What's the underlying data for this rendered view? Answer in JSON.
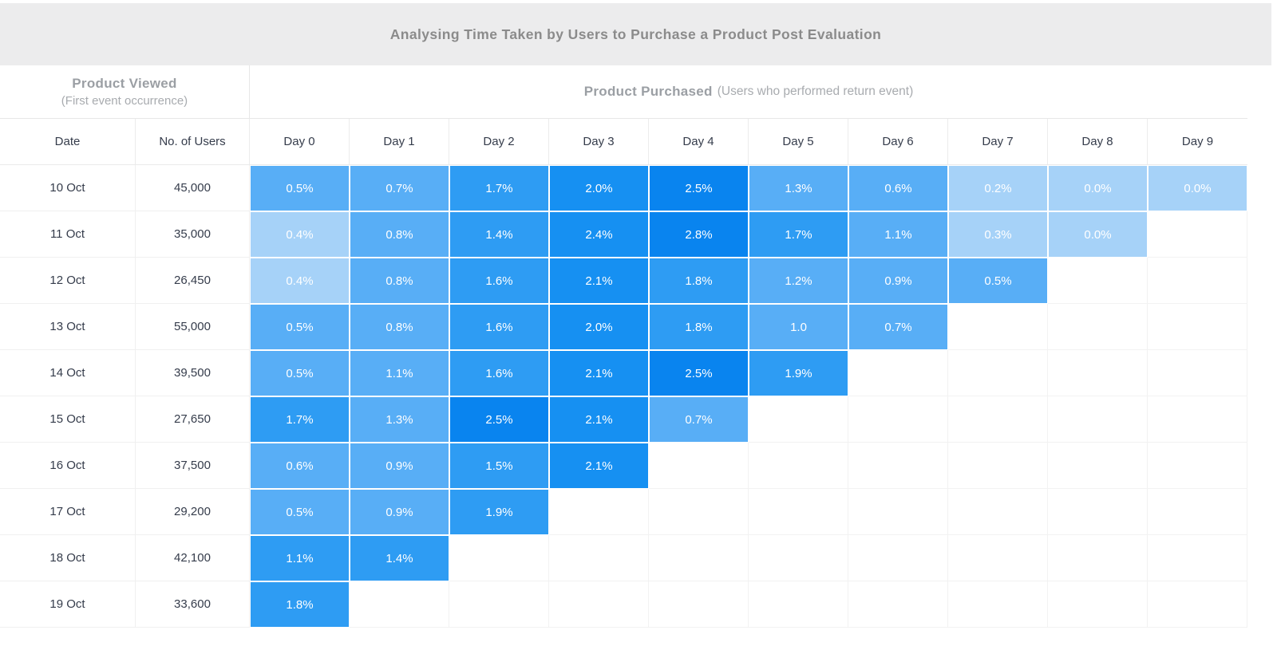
{
  "title": "Analysing Time Taken by Users to Purchase a Product Post Evaluation",
  "group_headers": {
    "left_title": "Product Viewed",
    "left_subtitle": "(First event occurrence)",
    "right_title": "Product Purchased",
    "right_subtitle": "(Users who performed return event)"
  },
  "colors": {
    "title_bar_bg": "#ECECED",
    "title_text": "#8B8B8B",
    "group_header_text": "#9B9FA4",
    "header_text": "#353C4B",
    "cell_text": "#FFFFFF",
    "grid_border": "#F0F0F0"
  },
  "chart_data": {
    "type": "heatmap",
    "title": "Analysing Time Taken by Users to Purchase a Product Post Evaluation",
    "columns": [
      "Date",
      "No. of Users",
      "Day 0",
      "Day 1",
      "Day 2",
      "Day 3",
      "Day 4",
      "Day 5",
      "Day 6",
      "Day 7",
      "Day 8",
      "Day 9"
    ],
    "palette": [
      "#A6D2F8",
      "#58AEF6",
      "#2E9CF3",
      "#1690F2",
      "#0984EF"
    ],
    "rows": [
      {
        "date": "10 Oct",
        "users": "45,000",
        "cells": [
          {
            "v": "0.5%",
            "l": 1
          },
          {
            "v": "0.7%",
            "l": 1
          },
          {
            "v": "1.7%",
            "l": 2
          },
          {
            "v": "2.0%",
            "l": 3
          },
          {
            "v": "2.5%",
            "l": 4
          },
          {
            "v": "1.3%",
            "l": 1
          },
          {
            "v": "0.6%",
            "l": 1
          },
          {
            "v": "0.2%",
            "l": 0
          },
          {
            "v": "0.0%",
            "l": 0
          },
          {
            "v": "0.0%",
            "l": 0
          }
        ]
      },
      {
        "date": "11 Oct",
        "users": "35,000",
        "cells": [
          {
            "v": "0.4%",
            "l": 0
          },
          {
            "v": "0.8%",
            "l": 1
          },
          {
            "v": "1.4%",
            "l": 2
          },
          {
            "v": "2.4%",
            "l": 3
          },
          {
            "v": "2.8%",
            "l": 4
          },
          {
            "v": "1.7%",
            "l": 2
          },
          {
            "v": "1.1%",
            "l": 1
          },
          {
            "v": "0.3%",
            "l": 0
          },
          {
            "v": "0.0%",
            "l": 0
          }
        ]
      },
      {
        "date": "12 Oct",
        "users": "26,450",
        "cells": [
          {
            "v": "0.4%",
            "l": 0
          },
          {
            "v": "0.8%",
            "l": 1
          },
          {
            "v": "1.6%",
            "l": 2
          },
          {
            "v": "2.1%",
            "l": 3
          },
          {
            "v": "1.8%",
            "l": 2
          },
          {
            "v": "1.2%",
            "l": 1
          },
          {
            "v": "0.9%",
            "l": 1
          },
          {
            "v": "0.5%",
            "l": 1
          }
        ]
      },
      {
        "date": "13 Oct",
        "users": "55,000",
        "cells": [
          {
            "v": "0.5%",
            "l": 1
          },
          {
            "v": "0.8%",
            "l": 1
          },
          {
            "v": "1.6%",
            "l": 2
          },
          {
            "v": "2.0%",
            "l": 3
          },
          {
            "v": "1.8%",
            "l": 2
          },
          {
            "v": "1.0",
            "l": 1
          },
          {
            "v": "0.7%",
            "l": 1
          }
        ]
      },
      {
        "date": "14 Oct",
        "users": "39,500",
        "cells": [
          {
            "v": "0.5%",
            "l": 1
          },
          {
            "v": "1.1%",
            "l": 1
          },
          {
            "v": "1.6%",
            "l": 2
          },
          {
            "v": "2.1%",
            "l": 3
          },
          {
            "v": "2.5%",
            "l": 4
          },
          {
            "v": "1.9%",
            "l": 2
          }
        ]
      },
      {
        "date": "15 Oct",
        "users": "27,650",
        "cells": [
          {
            "v": "1.7%",
            "l": 2
          },
          {
            "v": "1.3%",
            "l": 1
          },
          {
            "v": "2.5%",
            "l": 4
          },
          {
            "v": "2.1%",
            "l": 3
          },
          {
            "v": "0.7%",
            "l": 1
          }
        ]
      },
      {
        "date": "16 Oct",
        "users": "37,500",
        "cells": [
          {
            "v": "0.6%",
            "l": 1
          },
          {
            "v": "0.9%",
            "l": 1
          },
          {
            "v": "1.5%",
            "l": 2
          },
          {
            "v": "2.1%",
            "l": 3
          }
        ]
      },
      {
        "date": "17 Oct",
        "users": "29,200",
        "cells": [
          {
            "v": "0.5%",
            "l": 1
          },
          {
            "v": "0.9%",
            "l": 1
          },
          {
            "v": "1.9%",
            "l": 2
          }
        ]
      },
      {
        "date": "18 Oct",
        "users": "42,100",
        "cells": [
          {
            "v": "1.1%",
            "l": 2
          },
          {
            "v": "1.4%",
            "l": 2
          }
        ]
      },
      {
        "date": "19 Oct",
        "users": "33,600",
        "cells": [
          {
            "v": "1.8%",
            "l": 2
          }
        ]
      }
    ]
  }
}
